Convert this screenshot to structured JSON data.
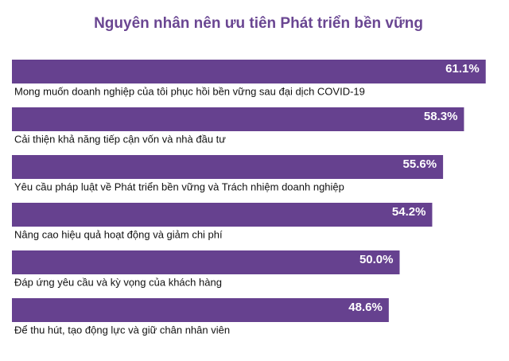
{
  "chart_data": {
    "type": "bar",
    "title": "Nguyên nhân nên ưu tiên Phát triển bền vững",
    "categories": [
      "Mong muốn doanh nghiệp của tôi phục hồi bền vững sau đại dịch COVID-19",
      "Cải thiện khả năng tiếp cận vốn và nhà đầu tư",
      "Yêu cầu pháp luật về Phát triển bền vững và Trách nhiệm doanh nghiệp",
      "Nâng cao hiệu quả hoạt động và giảm chi phí",
      "Đáp ứng yêu cầu và kỳ vọng của khách hàng",
      "Để thu hút, tạo động lực và giữ chân nhân viên"
    ],
    "values": [
      61.1,
      58.3,
      55.6,
      54.2,
      50.0,
      48.6
    ],
    "value_labels": [
      "61.1%",
      "58.3%",
      "55.6%",
      "54.2%",
      "50.0%",
      "48.6%"
    ],
    "color": "#66418f"
  }
}
